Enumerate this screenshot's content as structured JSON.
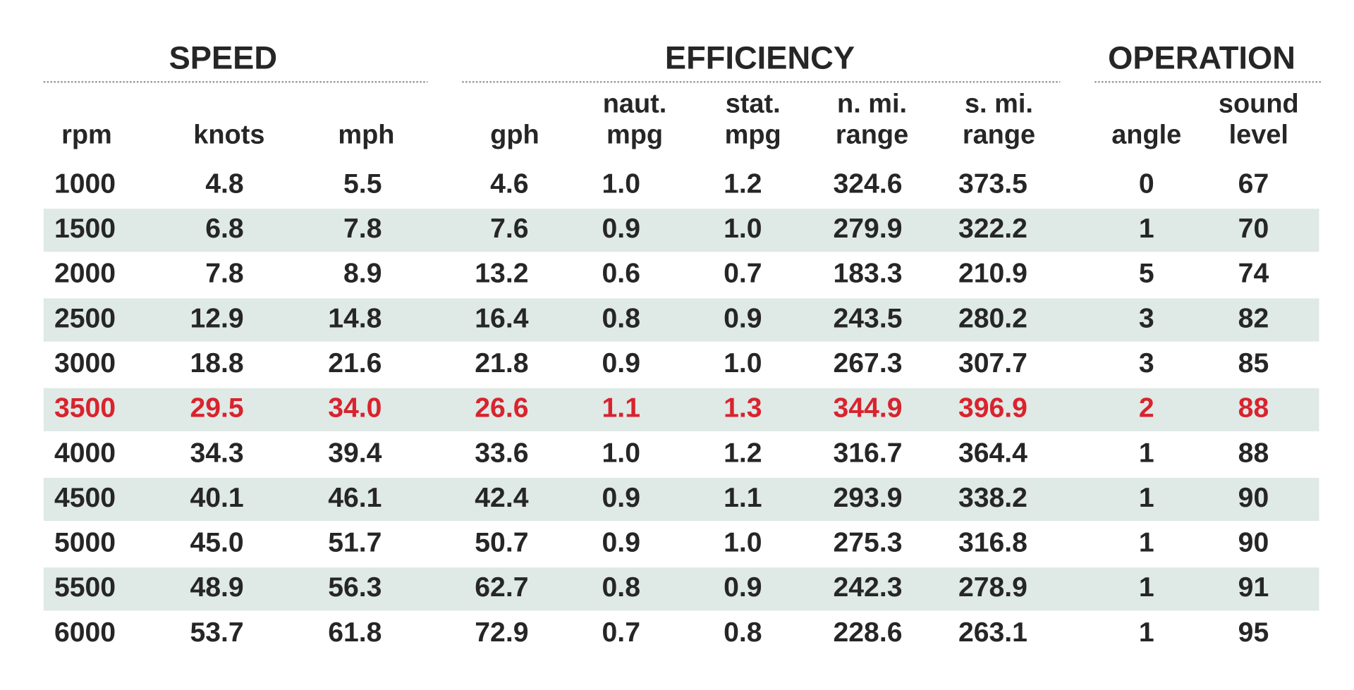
{
  "groups": [
    "SPEED",
    "EFFICIENCY",
    "OPERATION"
  ],
  "columns": [
    [
      "rpm"
    ],
    [
      "knots"
    ],
    [
      "mph"
    ],
    [
      "gph"
    ],
    [
      "naut.",
      "mpg"
    ],
    [
      "stat.",
      "mpg"
    ],
    [
      "n. mi.",
      "range"
    ],
    [
      "s. mi.",
      "range"
    ],
    [
      "angle"
    ],
    [
      "sound",
      "level"
    ]
  ],
  "rows": [
    [
      "1000",
      "4.8",
      "5.5",
      "4.6",
      "1.0",
      "1.2",
      "324.6",
      "373.5",
      "0",
      "67"
    ],
    [
      "1500",
      "6.8",
      "7.8",
      "7.6",
      "0.9",
      "1.0",
      "279.9",
      "322.2",
      "1",
      "70"
    ],
    [
      "2000",
      "7.8",
      "8.9",
      "13.2",
      "0.6",
      "0.7",
      "183.3",
      "210.9",
      "5",
      "74"
    ],
    [
      "2500",
      "12.9",
      "14.8",
      "16.4",
      "0.8",
      "0.9",
      "243.5",
      "280.2",
      "3",
      "82"
    ],
    [
      "3000",
      "18.8",
      "21.6",
      "21.8",
      "0.9",
      "1.0",
      "267.3",
      "307.7",
      "3",
      "85"
    ],
    [
      "3500",
      "29.5",
      "34.0",
      "26.6",
      "1.1",
      "1.3",
      "344.9",
      "396.9",
      "2",
      "88"
    ],
    [
      "4000",
      "34.3",
      "39.4",
      "33.6",
      "1.0",
      "1.2",
      "316.7",
      "364.4",
      "1",
      "88"
    ],
    [
      "4500",
      "40.1",
      "46.1",
      "42.4",
      "0.9",
      "1.1",
      "293.9",
      "338.2",
      "1",
      "90"
    ],
    [
      "5000",
      "45.0",
      "51.7",
      "50.7",
      "0.9",
      "1.0",
      "275.3",
      "316.8",
      "1",
      "90"
    ],
    [
      "5500",
      "48.9",
      "56.3",
      "62.7",
      "0.8",
      "0.9",
      "242.3",
      "278.9",
      "1",
      "91"
    ],
    [
      "6000",
      "53.7",
      "61.8",
      "72.9",
      "0.7",
      "0.8",
      "228.6",
      "263.1",
      "1",
      "95"
    ]
  ],
  "highlight_row": 5,
  "highlight_color": "#d9232e",
  "stripe_color": "#dfe9e6"
}
